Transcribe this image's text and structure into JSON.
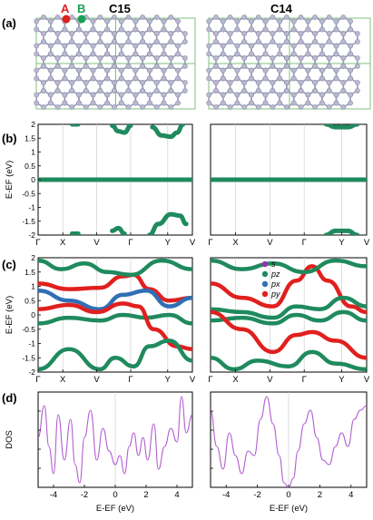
{
  "panels": {
    "a": "(a)",
    "b": "(b)",
    "c": "(c)",
    "d": "(d)"
  },
  "structures": {
    "left_title": "C15",
    "right_title": "C14",
    "site_a": "A",
    "site_b": "B",
    "site_a_color": "#e0201e",
    "site_b_color": "#1aa05a",
    "atom_color": "#b9bad2",
    "cell_line_color": "#7fbf7f"
  },
  "colors": {
    "s": "#9b2fae",
    "pz": "#1f8a5e",
    "px": "#2f6fb5",
    "py": "#e0201e",
    "dos": "#b25fd1"
  },
  "chart_data": [
    {
      "panel": "b-left",
      "type": "line",
      "ylabel": "E-EF (eV)",
      "yticks": [
        "2",
        "1.5",
        "1",
        "0.5",
        "0",
        "-0.5",
        "-1",
        "-1.5",
        "-2"
      ],
      "ylim": [
        -2,
        2
      ],
      "xticks": [
        "Γ",
        "X",
        "V",
        "Γ",
        "Y",
        "V"
      ],
      "series": [
        {
          "color": "#1f8a5e",
          "x": [
            0,
            1
          ],
          "y": [
            0,
            0
          ]
        },
        {
          "color": "#1f8a5e",
          "x": [
            0.22,
            0.26
          ],
          "y": [
            2.0,
            2.0
          ]
        },
        {
          "color": "#1f8a5e",
          "x": [
            0.48,
            0.52,
            0.56,
            0.6
          ],
          "y": [
            1.95,
            1.75,
            1.7,
            1.95
          ]
        },
        {
          "color": "#1f8a5e",
          "x": [
            0.74,
            0.8,
            0.86,
            0.9,
            0.94
          ],
          "y": [
            1.9,
            1.6,
            1.55,
            1.7,
            2.0
          ]
        },
        {
          "color": "#1f8a5e",
          "x": [
            0.22,
            0.26
          ],
          "y": [
            -1.95,
            -1.95
          ]
        },
        {
          "color": "#1f8a5e",
          "x": [
            0.48,
            0.52,
            0.56
          ],
          "y": [
            -1.85,
            -1.75,
            -1.95
          ]
        },
        {
          "color": "#1f8a5e",
          "x": [
            0.72,
            0.78,
            0.86,
            0.92,
            0.96
          ],
          "y": [
            -2.0,
            -1.6,
            -1.25,
            -1.3,
            -1.6
          ]
        }
      ]
    },
    {
      "panel": "b-right",
      "type": "line",
      "ylim": [
        -2,
        2
      ],
      "xticks": [
        "Γ",
        "X",
        "V",
        "Γ",
        "Y",
        "V"
      ],
      "series": [
        {
          "color": "#1f8a5e",
          "x": [
            0,
            1
          ],
          "y": [
            0,
            0
          ]
        },
        {
          "color": "#1f8a5e",
          "x": [
            0.74,
            0.8,
            0.88,
            0.94
          ],
          "y": [
            2.0,
            1.9,
            1.9,
            2.0
          ]
        },
        {
          "color": "#1f8a5e",
          "x": [
            0.74,
            0.8,
            0.88,
            0.94
          ],
          "y": [
            -2.0,
            -1.85,
            -1.85,
            -2.0
          ]
        }
      ]
    },
    {
      "panel": "c-left",
      "type": "line",
      "ylabel": "E-EF (eV)",
      "yticks": [
        "2",
        "1.5",
        "1",
        "0.5",
        "0",
        "-0.5",
        "-1",
        "-1.5",
        "-2"
      ],
      "ylim": [
        -2,
        2
      ],
      "xticks": [
        "Γ",
        "X",
        "V",
        "Γ",
        "Y",
        "V"
      ],
      "series": [
        {
          "color": "#e0201e",
          "x": [
            0,
            0.2,
            0.4,
            0.55,
            0.62,
            0.72,
            0.85,
            1
          ],
          "y": [
            1.1,
            0.9,
            0.95,
            1.35,
            1.4,
            0.9,
            0.5,
            0.6
          ]
        },
        {
          "color": "#2f6fb5",
          "x": [
            0,
            0.2,
            0.4,
            0.55,
            0.7,
            0.85,
            1
          ],
          "y": [
            0.85,
            0.5,
            0.2,
            0.7,
            0.85,
            0.3,
            0.6
          ]
        },
        {
          "color": "#1f8a5e",
          "x": [
            0,
            0.2,
            0.4,
            0.55,
            0.7,
            0.85,
            1
          ],
          "y": [
            -0.3,
            -0.1,
            -0.2,
            0.0,
            -0.1,
            0.0,
            -0.3
          ]
        },
        {
          "color": "#e0201e",
          "x": [
            0,
            0.2,
            0.38,
            0.55,
            0.65,
            0.75,
            0.9,
            1
          ],
          "y": [
            0.2,
            0.35,
            0.1,
            0.4,
            0.3,
            -0.5,
            -1.1,
            -1.2
          ]
        },
        {
          "color": "#1f8a5e",
          "x": [
            0,
            0.15,
            0.3,
            0.45,
            0.6,
            0.8,
            1
          ],
          "y": [
            1.9,
            1.6,
            1.8,
            1.5,
            1.4,
            1.9,
            1.6
          ]
        },
        {
          "color": "#1f8a5e",
          "x": [
            0,
            0.2,
            0.4,
            0.5,
            0.62,
            0.72,
            0.85,
            1
          ],
          "y": [
            -1.9,
            -1.2,
            -1.9,
            -1.5,
            -1.8,
            -1.1,
            -0.9,
            -1.6
          ]
        }
      ]
    },
    {
      "panel": "c-right",
      "type": "line",
      "ylim": [
        -2,
        2
      ],
      "xticks": [
        "Γ",
        "X",
        "V",
        "Γ",
        "Y",
        "V"
      ],
      "legend": [
        "s",
        "pz",
        "px",
        "py"
      ],
      "series": [
        {
          "color": "#e0201e",
          "x": [
            0,
            0.2,
            0.4,
            0.55,
            0.65,
            0.75,
            0.9,
            1
          ],
          "y": [
            1.1,
            0.6,
            0.3,
            1.2,
            1.7,
            1.2,
            0.3,
            0.1
          ]
        },
        {
          "color": "#1f8a5e",
          "x": [
            0,
            0.2,
            0.4,
            0.55,
            0.7,
            0.85,
            1
          ],
          "y": [
            0.2,
            0.1,
            -0.1,
            0.3,
            0.2,
            0.6,
            0.3
          ]
        },
        {
          "color": "#1f8a5e",
          "x": [
            0,
            0.2,
            0.4,
            0.55,
            0.7,
            0.85,
            1
          ],
          "y": [
            -0.2,
            -0.1,
            -0.3,
            0.0,
            -0.2,
            0.1,
            -0.2
          ]
        },
        {
          "color": "#e0201e",
          "x": [
            0,
            0.2,
            0.4,
            0.55,
            0.65,
            0.8,
            1
          ],
          "y": [
            0.1,
            -0.5,
            -1.3,
            -0.7,
            -0.6,
            -0.9,
            -1.5
          ]
        },
        {
          "color": "#1f8a5e",
          "x": [
            0,
            0.15,
            0.3,
            0.5,
            0.65,
            0.8,
            1
          ],
          "y": [
            -1.5,
            -1.9,
            -1.6,
            -1.8,
            -1.3,
            -1.7,
            -1.9
          ]
        },
        {
          "color": "#1f8a5e",
          "x": [
            0,
            0.2,
            0.4,
            0.6,
            0.8,
            1
          ],
          "y": [
            1.9,
            1.6,
            1.8,
            1.5,
            1.9,
            1.7
          ]
        }
      ]
    },
    {
      "panel": "d-left",
      "type": "line",
      "ylabel": "DOS",
      "xlabel": "E-EF (eV)",
      "xticks": [
        "-4",
        "-2",
        "0",
        "2",
        "4"
      ],
      "xlim": [
        -5,
        5
      ],
      "series": [
        {
          "color": "#b25fd1",
          "x": [
            -5,
            -4.6,
            -4.3,
            -4.0,
            -3.7,
            -3.3,
            -2.9,
            -2.6,
            -2.3,
            -2.0,
            -1.6,
            -1.2,
            -0.8,
            -0.4,
            0.0,
            0.3,
            0.6,
            0.9,
            1.2,
            1.5,
            1.8,
            2.1,
            2.5,
            2.8,
            3.2,
            3.6,
            4.0,
            4.3,
            4.6,
            5.0
          ],
          "y": [
            0.55,
            0.9,
            0.45,
            0.15,
            0.8,
            0.3,
            0.75,
            0.25,
            0.05,
            0.55,
            0.85,
            0.3,
            0.65,
            0.4,
            0.25,
            0.35,
            0.15,
            0.45,
            0.6,
            0.35,
            0.55,
            0.3,
            0.7,
            0.2,
            0.45,
            0.65,
            0.5,
            1.0,
            0.6,
            0.8
          ]
        }
      ]
    },
    {
      "panel": "d-right",
      "type": "line",
      "xlabel": "E-EF (eV)",
      "xticks": [
        "-4",
        "-2",
        "0",
        "2",
        "4"
      ],
      "xlim": [
        -5,
        5
      ],
      "series": [
        {
          "color": "#b25fd1",
          "x": [
            -5,
            -4.6,
            -4.2,
            -3.8,
            -3.4,
            -3.0,
            -2.6,
            -2.2,
            -1.8,
            -1.4,
            -1.0,
            -0.6,
            -0.3,
            0.0,
            0.3,
            0.6,
            1.0,
            1.4,
            1.8,
            2.2,
            2.6,
            3.0,
            3.4,
            3.8,
            4.2,
            4.6,
            5.0
          ],
          "y": [
            0.85,
            0.45,
            0.2,
            0.6,
            0.35,
            0.15,
            0.4,
            0.35,
            0.75,
            1.0,
            0.7,
            0.35,
            0.05,
            0.0,
            0.1,
            0.4,
            0.7,
            0.85,
            0.55,
            0.3,
            0.25,
            0.45,
            0.6,
            0.45,
            0.75,
            0.85,
            0.9
          ]
        }
      ]
    }
  ],
  "legend": {
    "s": "s",
    "pz": "pz",
    "px": "px",
    "py": "py"
  }
}
